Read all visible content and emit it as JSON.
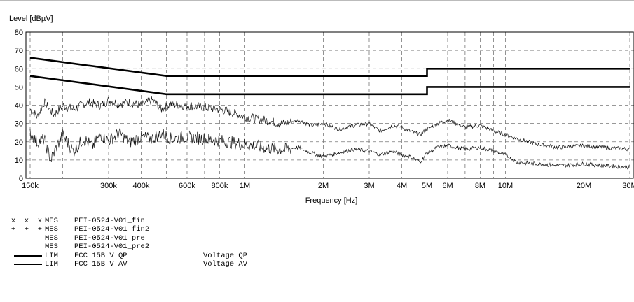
{
  "chart_data": {
    "type": "line",
    "ylabel": "Level [dBµV]",
    "xlabel": "Frequency [Hz]",
    "xscale": "log",
    "xlim": [
      150000,
      30000000
    ],
    "ylim": [
      0,
      80
    ],
    "yticks": [
      0,
      10,
      20,
      30,
      40,
      50,
      60,
      70,
      80
    ],
    "xticks": [
      {
        "v": 150000,
        "label": "150k"
      },
      {
        "v": 300000,
        "label": "300k"
      },
      {
        "v": 400000,
        "label": "400k"
      },
      {
        "v": 600000,
        "label": "600k"
      },
      {
        "v": 800000,
        "label": "800k"
      },
      {
        "v": 1000000,
        "label": "1M"
      },
      {
        "v": 2000000,
        "label": "2M"
      },
      {
        "v": 3000000,
        "label": "3M"
      },
      {
        "v": 4000000,
        "label": "4M"
      },
      {
        "v": 5000000,
        "label": "5M"
      },
      {
        "v": 6000000,
        "label": "6M"
      },
      {
        "v": 8000000,
        "label": "8M"
      },
      {
        "v": 10000000,
        "label": "10M"
      },
      {
        "v": 20000000,
        "label": "20M"
      },
      {
        "v": 30000000,
        "label": "30M"
      }
    ],
    "grid": true,
    "limits": [
      {
        "name": "FCC 15B V QP",
        "points": [
          [
            150000,
            66
          ],
          [
            500000,
            56
          ],
          [
            5000000,
            56
          ],
          [
            5000000,
            60
          ],
          [
            30000000,
            60
          ]
        ]
      },
      {
        "name": "FCC 15B V AV",
        "points": [
          [
            150000,
            56
          ],
          [
            500000,
            46
          ],
          [
            5000000,
            46
          ],
          [
            5000000,
            50
          ],
          [
            30000000,
            50
          ]
        ]
      }
    ],
    "series": [
      {
        "name": "PEI-0524-V01_pre",
        "style": "upper",
        "points": [
          [
            150000,
            38
          ],
          [
            160000,
            34
          ],
          [
            170000,
            42
          ],
          [
            185000,
            35
          ],
          [
            200000,
            40
          ],
          [
            220000,
            38
          ],
          [
            250000,
            42
          ],
          [
            280000,
            40
          ],
          [
            300000,
            43
          ],
          [
            330000,
            41
          ],
          [
            360000,
            42
          ],
          [
            400000,
            40
          ],
          [
            440000,
            43
          ],
          [
            480000,
            38
          ],
          [
            520000,
            41
          ],
          [
            600000,
            40
          ],
          [
            700000,
            39
          ],
          [
            800000,
            38
          ],
          [
            900000,
            36
          ],
          [
            1000000,
            34
          ],
          [
            1200000,
            32
          ],
          [
            1400000,
            30
          ],
          [
            1600000,
            32
          ],
          [
            1800000,
            29
          ],
          [
            2000000,
            30
          ],
          [
            2300000,
            27
          ],
          [
            2600000,
            29
          ],
          [
            3000000,
            30
          ],
          [
            3300000,
            26
          ],
          [
            3700000,
            29
          ],
          [
            4000000,
            28
          ],
          [
            4300000,
            26
          ],
          [
            4700000,
            24
          ],
          [
            5000000,
            27
          ],
          [
            5500000,
            30
          ],
          [
            6000000,
            32
          ],
          [
            7000000,
            28
          ],
          [
            8000000,
            29
          ],
          [
            9000000,
            26
          ],
          [
            10000000,
            24
          ],
          [
            11000000,
            22
          ],
          [
            13000000,
            19
          ],
          [
            16000000,
            17
          ],
          [
            20000000,
            18
          ],
          [
            24000000,
            17
          ],
          [
            30000000,
            16
          ]
        ]
      },
      {
        "name": "PEI-0524-V01_pre2",
        "style": "lower",
        "points": [
          [
            150000,
            25
          ],
          [
            160000,
            20
          ],
          [
            170000,
            22
          ],
          [
            180000,
            10
          ],
          [
            190000,
            18
          ],
          [
            200000,
            24
          ],
          [
            220000,
            15
          ],
          [
            240000,
            22
          ],
          [
            260000,
            18
          ],
          [
            280000,
            24
          ],
          [
            300000,
            21
          ],
          [
            330000,
            25
          ],
          [
            360000,
            20
          ],
          [
            400000,
            23
          ],
          [
            440000,
            22
          ],
          [
            480000,
            25
          ],
          [
            520000,
            22
          ],
          [
            600000,
            23
          ],
          [
            700000,
            22
          ],
          [
            800000,
            21
          ],
          [
            900000,
            20
          ],
          [
            1000000,
            19
          ],
          [
            1200000,
            17
          ],
          [
            1400000,
            16
          ],
          [
            1600000,
            17
          ],
          [
            1800000,
            14
          ],
          [
            2000000,
            12
          ],
          [
            2300000,
            14
          ],
          [
            2600000,
            16
          ],
          [
            3000000,
            15
          ],
          [
            3300000,
            13
          ],
          [
            3700000,
            15
          ],
          [
            4000000,
            13
          ],
          [
            4300000,
            12
          ],
          [
            4700000,
            9
          ],
          [
            5000000,
            14
          ],
          [
            5500000,
            17
          ],
          [
            6000000,
            18
          ],
          [
            7000000,
            16
          ],
          [
            8000000,
            17
          ],
          [
            9000000,
            15
          ],
          [
            10000000,
            13
          ],
          [
            11000000,
            9
          ],
          [
            13000000,
            8
          ],
          [
            16000000,
            7
          ],
          [
            20000000,
            8
          ],
          [
            24000000,
            7
          ],
          [
            30000000,
            6
          ]
        ]
      }
    ]
  },
  "legend": [
    {
      "sym": "x  x  x",
      "line": "",
      "type": "MES",
      "name": "PEI-0524-V01_fin",
      "desc": ""
    },
    {
      "sym": "+  +  +",
      "line": "",
      "type": "MES",
      "name": "PEI-0524-V01_fin2",
      "desc": ""
    },
    {
      "sym": "",
      "line": "thin",
      "type": "MES",
      "name": "PEI-0524-V01_pre",
      "desc": ""
    },
    {
      "sym": "",
      "line": "thin",
      "type": "MES",
      "name": "PEI-0524-V01_pre2",
      "desc": ""
    },
    {
      "sym": "",
      "line": "thick",
      "type": "LIM",
      "name": "FCC 15B V QP",
      "desc": "Voltage QP"
    },
    {
      "sym": "",
      "line": "thick",
      "type": "LIM",
      "name": "FCC 15B V AV",
      "desc": "Voltage AV"
    }
  ]
}
